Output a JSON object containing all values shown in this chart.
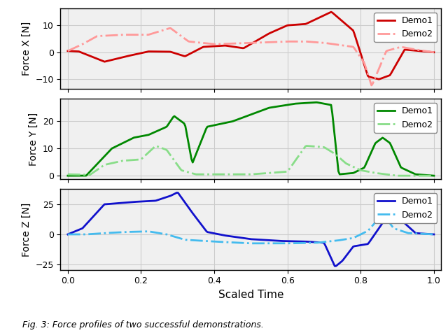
{
  "xlabel": "Scaled Time",
  "ylabels": [
    "Force X [N]",
    "Force Y [N]",
    "Force Z [N]"
  ],
  "legend_labels": [
    "Demo1",
    "Demo2"
  ],
  "colors_demo1": [
    "#cc0000",
    "#008800",
    "#1111cc"
  ],
  "colors_demo2": [
    "#ff9999",
    "#88dd88",
    "#44bbee"
  ],
  "linewidth": 2.0,
  "figsize": [
    6.4,
    4.76
  ],
  "dpi": 100,
  "caption": "Fig. 3: Force profiles of two successful demonstrations."
}
